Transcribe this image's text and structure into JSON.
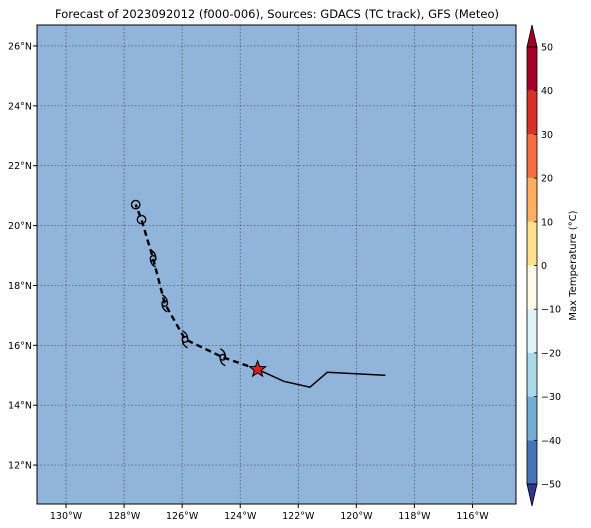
{
  "title": "Forecast of 2023092012 (f000-006), Sources: GDACS (TC track), GFS (Meteo)",
  "map": {
    "lon_range": [
      -131.0,
      -114.5
    ],
    "lat_range": [
      10.7,
      26.7
    ],
    "ocean_color": "#91b5da",
    "grid": true,
    "lon_ticks": [
      {
        "value": -130,
        "label": "130°W"
      },
      {
        "value": -128,
        "label": "128°W"
      },
      {
        "value": -126,
        "label": "126°W"
      },
      {
        "value": -124,
        "label": "124°W"
      },
      {
        "value": -122,
        "label": "122°W"
      },
      {
        "value": -120,
        "label": "120°W"
      },
      {
        "value": -118,
        "label": "118°W"
      },
      {
        "value": -116,
        "label": "116°W"
      }
    ],
    "lat_ticks": [
      {
        "value": 12,
        "label": "12°N"
      },
      {
        "value": 14,
        "label": "14°N"
      },
      {
        "value": 16,
        "label": "16°N"
      },
      {
        "value": 18,
        "label": "18°N"
      },
      {
        "value": 20,
        "label": "20°N"
      },
      {
        "value": 22,
        "label": "22°N"
      },
      {
        "value": 24,
        "label": "24°N"
      },
      {
        "value": 26,
        "label": "26°N"
      }
    ]
  },
  "track": {
    "observed": [
      {
        "lon": -119.0,
        "lat": 15.0
      },
      {
        "lon": -121.0,
        "lat": 15.1
      },
      {
        "lon": -121.6,
        "lat": 14.6
      },
      {
        "lon": -122.5,
        "lat": 14.8
      },
      {
        "lon": -123.4,
        "lat": 15.2
      }
    ],
    "current": {
      "lon": -123.4,
      "lat": 15.2,
      "color": "#d92020"
    },
    "forecast": [
      {
        "lon": -123.4,
        "lat": 15.2,
        "symbol": "none"
      },
      {
        "lon": -124.6,
        "lat": 15.6,
        "symbol": "storm"
      },
      {
        "lon": -125.9,
        "lat": 16.2,
        "symbol": "storm"
      },
      {
        "lon": -126.6,
        "lat": 17.4,
        "symbol": "storm"
      },
      {
        "lon": -127.0,
        "lat": 18.9,
        "symbol": "storm"
      },
      {
        "lon": -127.4,
        "lat": 20.2,
        "symbol": "depression"
      },
      {
        "lon": -127.6,
        "lat": 20.7,
        "symbol": "depression"
      }
    ]
  },
  "colorbar": {
    "label": "Max Temperature (°C)",
    "min": -50,
    "max": 50,
    "ticks": [
      50,
      40,
      30,
      20,
      10,
      0,
      -10,
      -20,
      -30,
      -40,
      -50
    ],
    "bands": [
      {
        "from": 40,
        "to": 50,
        "color": "#a50026"
      },
      {
        "from": 30,
        "to": 40,
        "color": "#d73027"
      },
      {
        "from": 20,
        "to": 30,
        "color": "#f46d43"
      },
      {
        "from": 10,
        "to": 20,
        "color": "#fdae61"
      },
      {
        "from": 0,
        "to": 10,
        "color": "#fee090"
      },
      {
        "from": -10,
        "to": 0,
        "color": "#fffbe8"
      },
      {
        "from": -20,
        "to": -10,
        "color": "#e0f3f8"
      },
      {
        "from": -30,
        "to": -20,
        "color": "#abd9e9"
      },
      {
        "from": -40,
        "to": -30,
        "color": "#74add1"
      },
      {
        "from": -50,
        "to": -40,
        "color": "#4575b4"
      }
    ],
    "over_color": "#a50026",
    "under_color": "#313695"
  }
}
